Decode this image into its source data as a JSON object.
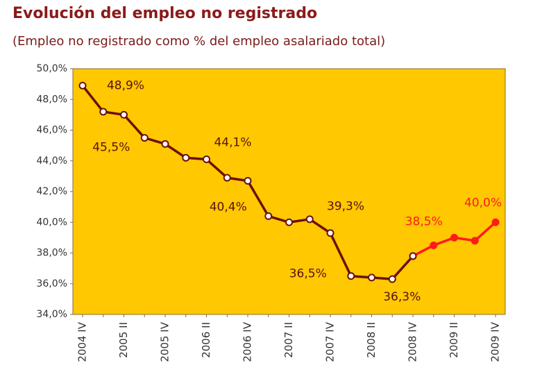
{
  "chart_data": {
    "type": "line",
    "title": "Evolución del empleo no registrado",
    "subtitle": "(Empleo no registrado como % del empleo asalariado total)",
    "categories": [
      "2004 IV",
      null,
      "2005 II",
      null,
      "2005 IV",
      null,
      "2006 II",
      null,
      "2006 IV",
      null,
      "2007 II",
      null,
      "2007 IV",
      null,
      "2008 II",
      null,
      "2008 IV",
      null,
      "2009 II",
      null,
      "2009 IV"
    ],
    "series": [
      {
        "color": "#ff1a1a",
        "values": [
          null,
          null,
          null,
          null,
          null,
          null,
          null,
          null,
          null,
          null,
          null,
          null,
          null,
          null,
          null,
          null,
          37.8,
          38.5,
          39.0,
          38.8,
          40.0
        ],
        "value_labels": [
          null,
          null,
          null,
          null,
          null,
          null,
          null,
          null,
          null,
          null,
          null,
          null,
          null,
          null,
          null,
          null,
          null,
          "38,5%",
          null,
          null,
          "40,0%"
        ]
      },
      {
        "color": "#6b1010",
        "values": [
          48.9,
          47.2,
          47.0,
          45.5,
          45.1,
          44.2,
          44.1,
          42.9,
          42.7,
          40.4,
          40.0,
          40.2,
          39.3,
          36.5,
          36.4,
          36.3,
          37.8,
          null,
          null,
          null,
          null
        ],
        "value_labels": [
          "48,9%",
          null,
          null,
          "45,5%",
          null,
          null,
          "44,1%",
          null,
          null,
          "40,4%",
          null,
          null,
          "39,3%",
          "36,5%",
          null,
          "36,3%",
          null,
          null,
          null,
          null,
          null
        ]
      }
    ],
    "ylim": [
      34,
      50
    ],
    "yticks": [
      {
        "value": 34,
        "label": "34,0%"
      },
      {
        "value": 36,
        "label": "36,0%"
      },
      {
        "value": 38,
        "label": "38,0%"
      },
      {
        "value": 40,
        "label": "40,0%"
      },
      {
        "value": 42,
        "label": "42,0%"
      },
      {
        "value": 44,
        "label": "44,0%"
      },
      {
        "value": 46,
        "label": "46,0%"
      },
      {
        "value": 48,
        "label": "48,0%"
      },
      {
        "value": 50,
        "label": "50,0%"
      }
    ],
    "plot_background": "#ffc800"
  }
}
